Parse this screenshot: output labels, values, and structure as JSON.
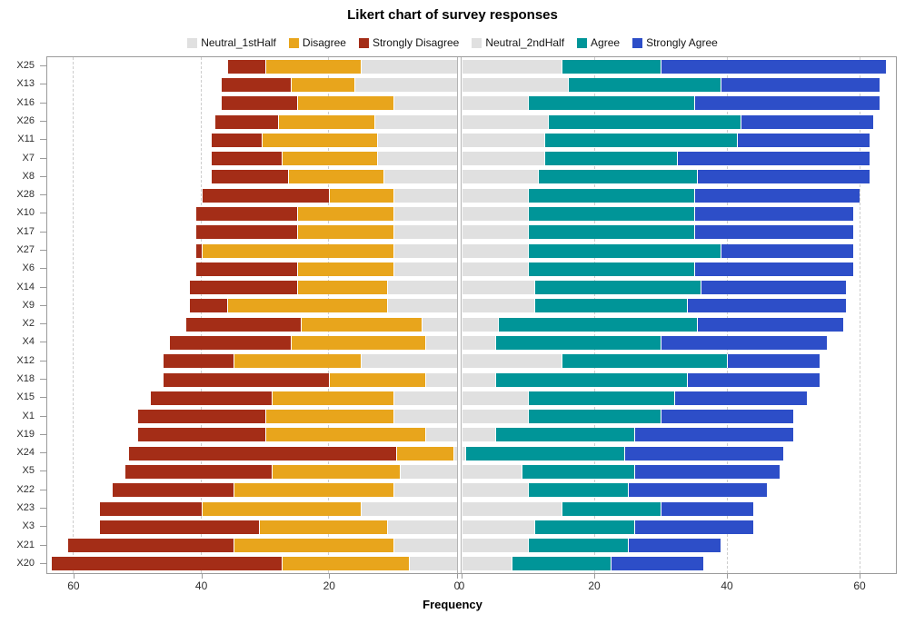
{
  "title": "Likert chart of survey responses",
  "x_axis": {
    "label": "Frequency",
    "left_ticks": [
      60,
      40,
      20,
      0
    ],
    "right_ticks": [
      0,
      20,
      40,
      60
    ]
  },
  "chart_data": {
    "type": "bar",
    "subtype": "diverging-stacked-likert",
    "orientation": "horizontal",
    "title": "Likert chart of survey responses",
    "xlabel": "Frequency",
    "ylabel": "",
    "total_per_row": 100,
    "legend_position": "top",
    "grid": "dashed-vertical",
    "gridline_values": [
      20,
      40,
      60
    ],
    "left_axis": {
      "min": 0,
      "max": 64.1,
      "reversed": true,
      "ticks": [
        60,
        40,
        20,
        0
      ]
    },
    "right_axis": {
      "min": 0,
      "max": 65.5,
      "ticks": [
        0,
        20,
        40,
        60
      ]
    },
    "categories": [
      "X25",
      "X13",
      "X16",
      "X26",
      "X11",
      "X7",
      "X8",
      "X28",
      "X10",
      "X17",
      "X27",
      "X6",
      "X14",
      "X9",
      "X2",
      "X4",
      "X12",
      "X18",
      "X15",
      "X1",
      "X19",
      "X24",
      "X5",
      "X22",
      "X23",
      "X3",
      "X21",
      "X20"
    ],
    "series": [
      {
        "name": "Neutral_1stHalf",
        "side": "left",
        "color": "#E0E0E0",
        "values": [
          15,
          16,
          10,
          13,
          12.5,
          12.5,
          11.5,
          10,
          10,
          10,
          10,
          10,
          11,
          11,
          5.5,
          5,
          15,
          5,
          10,
          10,
          5,
          0.5,
          9,
          10,
          15,
          11,
          10,
          7.5
        ]
      },
      {
        "name": "Disagree",
        "side": "left",
        "color": "#E8A51C",
        "values": [
          15,
          10,
          15,
          15,
          18,
          15,
          15,
          10,
          15,
          15,
          30,
          15,
          14,
          25,
          19,
          21,
          20,
          15,
          19,
          20,
          25,
          9,
          20,
          25,
          25,
          20,
          25,
          20
        ]
      },
      {
        "name": "Strongly Disagree",
        "side": "left",
        "color": "#A42D17",
        "values": [
          6,
          11,
          12,
          10,
          8,
          11,
          12,
          20,
          16,
          16,
          1,
          16,
          17,
          6,
          18,
          19,
          11,
          26,
          19,
          20,
          20,
          42,
          23,
          19,
          16,
          25,
          26,
          36
        ]
      },
      {
        "name": "Neutral_2ndHalf",
        "side": "right",
        "color": "#E0E0E0",
        "values": [
          15,
          16,
          10,
          13,
          12.5,
          12.5,
          11.5,
          10,
          10,
          10,
          10,
          10,
          11,
          11,
          5.5,
          5,
          15,
          5,
          10,
          10,
          5,
          0.5,
          9,
          10,
          15,
          11,
          10,
          7.5
        ]
      },
      {
        "name": "Agree",
        "side": "right",
        "color": "#009598",
        "values": [
          15,
          23,
          25,
          29,
          29,
          20,
          24,
          25,
          25,
          25,
          29,
          25,
          25,
          23,
          30,
          25,
          25,
          29,
          22,
          20,
          21,
          24,
          17,
          15,
          15,
          15,
          15,
          15
        ]
      },
      {
        "name": "Strongly Agree",
        "side": "right",
        "color": "#2D4EC8",
        "values": [
          34,
          24,
          28,
          20,
          20,
          29,
          26,
          25,
          24,
          24,
          20,
          24,
          22,
          24,
          22,
          25,
          14,
          20,
          20,
          20,
          24,
          24,
          22,
          21,
          14,
          18,
          14,
          14
        ]
      }
    ]
  }
}
